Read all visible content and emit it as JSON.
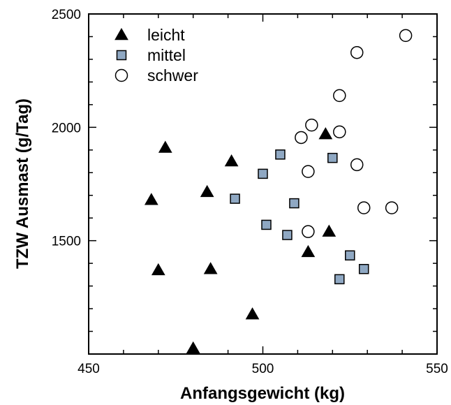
{
  "chart_data": {
    "type": "scatter",
    "title": "",
    "xlabel": "Anfangsgewicht (kg)",
    "ylabel": "TZW Ausmast (g/Tag)",
    "xlim": [
      450,
      550
    ],
    "ylim": [
      1000,
      2500
    ],
    "x_ticks": [
      450,
      500,
      550
    ],
    "y_ticks": [
      1500,
      2000,
      2500
    ],
    "grid": false,
    "legend_position": "top-left",
    "series": [
      {
        "name": "leicht",
        "marker": "triangle",
        "color": "#000000",
        "points": [
          {
            "x": 472,
            "y": 1910
          },
          {
            "x": 491,
            "y": 1850
          },
          {
            "x": 468,
            "y": 1680
          },
          {
            "x": 484,
            "y": 1715
          },
          {
            "x": 470,
            "y": 1370
          },
          {
            "x": 485,
            "y": 1375
          },
          {
            "x": 497,
            "y": 1175
          },
          {
            "x": 480,
            "y": 1025
          },
          {
            "x": 513,
            "y": 1450
          },
          {
            "x": 519,
            "y": 1540
          },
          {
            "x": 518,
            "y": 1970
          }
        ]
      },
      {
        "name": "mittel",
        "marker": "square",
        "color": "#8fa8c3",
        "points": [
          {
            "x": 505,
            "y": 1880
          },
          {
            "x": 520,
            "y": 1865
          },
          {
            "x": 500,
            "y": 1795
          },
          {
            "x": 492,
            "y": 1685
          },
          {
            "x": 509,
            "y": 1665
          },
          {
            "x": 501,
            "y": 1570
          },
          {
            "x": 507,
            "y": 1525
          },
          {
            "x": 525,
            "y": 1435
          },
          {
            "x": 529,
            "y": 1375
          },
          {
            "x": 522,
            "y": 1330
          }
        ]
      },
      {
        "name": "schwer",
        "marker": "circle",
        "color": "#ffffff",
        "points": [
          {
            "x": 541,
            "y": 2405
          },
          {
            "x": 527,
            "y": 2330
          },
          {
            "x": 522,
            "y": 2140
          },
          {
            "x": 514,
            "y": 2010
          },
          {
            "x": 511,
            "y": 1955
          },
          {
            "x": 522,
            "y": 1980
          },
          {
            "x": 513,
            "y": 1805
          },
          {
            "x": 527,
            "y": 1835
          },
          {
            "x": 529,
            "y": 1645
          },
          {
            "x": 537,
            "y": 1645
          },
          {
            "x": 513,
            "y": 1540
          }
        ]
      }
    ]
  }
}
